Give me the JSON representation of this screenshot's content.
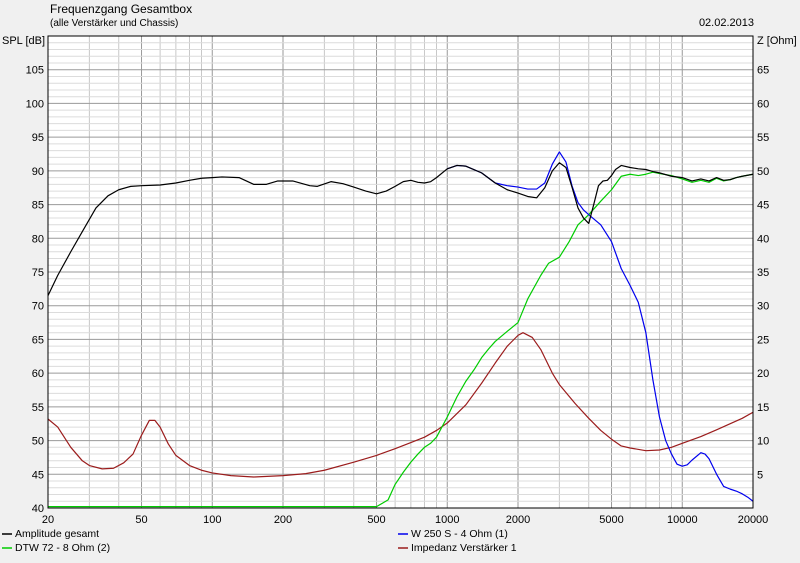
{
  "chart_data": {
    "type": "line",
    "title": "Frequenzgang Gesamtbox",
    "subtitle": "(alle Verstärker und Chassis)",
    "date": "02.02.2013",
    "ylabel_left": "SPL [dB]",
    "ylabel_right": "Z [Ohm]",
    "x_scale": "log",
    "xlim": [
      20,
      20000
    ],
    "ylim_left": [
      40,
      110
    ],
    "ylim_right": [
      0,
      70
    ],
    "x_ticks": [
      {
        "v": 20,
        "label": "20"
      },
      {
        "v": 50,
        "label": "50"
      },
      {
        "v": 100,
        "label": "100"
      },
      {
        "v": 200,
        "label": "200"
      },
      {
        "v": 500,
        "label": "500"
      },
      {
        "v": 1000,
        "label": "1000"
      },
      {
        "v": 2000,
        "label": "2000"
      },
      {
        "v": 5000,
        "label": "5000"
      },
      {
        "v": 10000,
        "label": "10000"
      },
      {
        "v": 20000,
        "label": "20000"
      }
    ],
    "y_ticks_left": [
      "40",
      "45",
      "50",
      "55",
      "60",
      "65",
      "70",
      "75",
      "80",
      "85",
      "90",
      "95",
      "100",
      "105"
    ],
    "y_ticks_right": [
      "5",
      "10",
      "15",
      "20",
      "25",
      "30",
      "35",
      "40",
      "45",
      "50",
      "55",
      "60",
      "65"
    ],
    "grid": true,
    "legend_position": "bottom",
    "series": [
      {
        "name": "Amplitude gesamt",
        "color": "#000000",
        "axis": "left",
        "points": [
          [
            20,
            71.5
          ],
          [
            22,
            74.5
          ],
          [
            25,
            78
          ],
          [
            28,
            81
          ],
          [
            32,
            84.5
          ],
          [
            36,
            86.3
          ],
          [
            40,
            87.2
          ],
          [
            45,
            87.7
          ],
          [
            50,
            87.8
          ],
          [
            60,
            87.9
          ],
          [
            70,
            88.2
          ],
          [
            80,
            88.6
          ],
          [
            90,
            88.9
          ],
          [
            100,
            89
          ],
          [
            110,
            89.1
          ],
          [
            130,
            89
          ],
          [
            150,
            88
          ],
          [
            170,
            88
          ],
          [
            190,
            88.5
          ],
          [
            220,
            88.5
          ],
          [
            260,
            87.8
          ],
          [
            280,
            87.7
          ],
          [
            320,
            88.4
          ],
          [
            360,
            88.1
          ],
          [
            400,
            87.6
          ],
          [
            450,
            87
          ],
          [
            500,
            86.6
          ],
          [
            550,
            87
          ],
          [
            600,
            87.7
          ],
          [
            650,
            88.4
          ],
          [
            700,
            88.6
          ],
          [
            750,
            88.3
          ],
          [
            800,
            88.2
          ],
          [
            850,
            88.4
          ],
          [
            900,
            89
          ],
          [
            1000,
            90.3
          ],
          [
            1100,
            90.8
          ],
          [
            1200,
            90.7
          ],
          [
            1400,
            89.7
          ],
          [
            1600,
            88.2
          ],
          [
            1800,
            87.2
          ],
          [
            2000,
            86.7
          ],
          [
            2200,
            86.2
          ],
          [
            2400,
            86
          ],
          [
            2600,
            87.5
          ],
          [
            2800,
            90
          ],
          [
            3000,
            91.2
          ],
          [
            3200,
            90.5
          ],
          [
            3400,
            87.5
          ],
          [
            3600,
            84.5
          ],
          [
            3800,
            83
          ],
          [
            4000,
            82.2
          ],
          [
            4200,
            85
          ],
          [
            4400,
            87.8
          ],
          [
            4600,
            88.5
          ],
          [
            4800,
            88.6
          ],
          [
            5000,
            89.3
          ],
          [
            5200,
            90.2
          ],
          [
            5500,
            90.8
          ],
          [
            6000,
            90.5
          ],
          [
            6500,
            90.3
          ],
          [
            7000,
            90.2
          ],
          [
            7500,
            89.9
          ],
          [
            8000,
            89.7
          ],
          [
            9000,
            89.2
          ],
          [
            10000,
            89
          ],
          [
            11000,
            88.5
          ],
          [
            12000,
            88.8
          ],
          [
            13000,
            88.5
          ],
          [
            14000,
            89
          ],
          [
            15000,
            88.6
          ],
          [
            16000,
            88.7
          ],
          [
            17000,
            89
          ],
          [
            18000,
            89.2
          ],
          [
            20000,
            89.5
          ]
        ]
      },
      {
        "name": "W 250 S - 4 Ohm (1)",
        "color": "#0000ee",
        "axis": "left",
        "points": [
          [
            1000,
            90.3
          ],
          [
            1100,
            90.8
          ],
          [
            1200,
            90.7
          ],
          [
            1400,
            89.7
          ],
          [
            1600,
            88.2
          ],
          [
            1800,
            87.8
          ],
          [
            2000,
            87.6
          ],
          [
            2200,
            87.3
          ],
          [
            2400,
            87.3
          ],
          [
            2600,
            88.2
          ],
          [
            2800,
            91
          ],
          [
            3000,
            92.8
          ],
          [
            3200,
            91.3
          ],
          [
            3400,
            87.7
          ],
          [
            3600,
            85.3
          ],
          [
            3800,
            84.2
          ],
          [
            4000,
            83.5
          ],
          [
            4500,
            82
          ],
          [
            5000,
            79.5
          ],
          [
            5500,
            75.5
          ],
          [
            6000,
            73
          ],
          [
            6500,
            70.5
          ],
          [
            7000,
            66
          ],
          [
            7500,
            59
          ],
          [
            8000,
            53.5
          ],
          [
            8500,
            50
          ],
          [
            9000,
            48
          ],
          [
            9500,
            46.5
          ],
          [
            10000,
            46.2
          ],
          [
            10500,
            46.4
          ],
          [
            11000,
            47.1
          ],
          [
            12000,
            48.2
          ],
          [
            12500,
            48
          ],
          [
            13000,
            47.3
          ],
          [
            14000,
            45
          ],
          [
            15000,
            43.2
          ],
          [
            16000,
            42.8
          ],
          [
            17000,
            42.5
          ],
          [
            18000,
            42.1
          ],
          [
            19000,
            41.6
          ],
          [
            20000,
            41
          ]
        ]
      },
      {
        "name": "DTW 72 - 8 Ohm (2)",
        "color": "#00cc00",
        "axis": "left",
        "points": [
          [
            20,
            40.2
          ],
          [
            100,
            40.2
          ],
          [
            300,
            40.2
          ],
          [
            500,
            40.2
          ],
          [
            560,
            41.2
          ],
          [
            600,
            43.5
          ],
          [
            650,
            45.3
          ],
          [
            700,
            46.8
          ],
          [
            750,
            48
          ],
          [
            800,
            49
          ],
          [
            850,
            49.6
          ],
          [
            900,
            50.5
          ],
          [
            1000,
            53.5
          ],
          [
            1100,
            56.5
          ],
          [
            1200,
            58.8
          ],
          [
            1300,
            60.5
          ],
          [
            1400,
            62.3
          ],
          [
            1500,
            63.6
          ],
          [
            1600,
            64.7
          ],
          [
            1800,
            66.2
          ],
          [
            2000,
            67.5
          ],
          [
            2200,
            71
          ],
          [
            2500,
            74.5
          ],
          [
            2700,
            76.3
          ],
          [
            3000,
            77.2
          ],
          [
            3300,
            79.5
          ],
          [
            3600,
            82
          ],
          [
            4000,
            83.5
          ],
          [
            4500,
            85.5
          ],
          [
            5000,
            87.2
          ],
          [
            5500,
            89.2
          ],
          [
            6000,
            89.5
          ],
          [
            6500,
            89.3
          ],
          [
            7000,
            89.5
          ],
          [
            7500,
            89.8
          ],
          [
            8000,
            89.6
          ],
          [
            9000,
            89.3
          ],
          [
            10000,
            88.8
          ],
          [
            11000,
            88.3
          ],
          [
            12000,
            88.6
          ],
          [
            13000,
            88.3
          ],
          [
            14000,
            88.9
          ],
          [
            15000,
            88.5
          ],
          [
            16000,
            88.7
          ],
          [
            17000,
            89
          ],
          [
            18000,
            89.2
          ],
          [
            20000,
            89.5
          ]
        ]
      },
      {
        "name": "Impedanz Verstärker 1",
        "color": "#9b1c1c",
        "axis": "right",
        "points": [
          [
            20,
            13.2
          ],
          [
            22,
            12
          ],
          [
            25,
            9
          ],
          [
            28,
            7
          ],
          [
            30,
            6.3
          ],
          [
            34,
            5.8
          ],
          [
            38,
            5.9
          ],
          [
            42,
            6.7
          ],
          [
            46,
            8
          ],
          [
            50,
            10.8
          ],
          [
            54,
            13
          ],
          [
            57,
            13
          ],
          [
            60,
            12
          ],
          [
            65,
            9.5
          ],
          [
            70,
            7.8
          ],
          [
            80,
            6.3
          ],
          [
            90,
            5.6
          ],
          [
            100,
            5.2
          ],
          [
            120,
            4.8
          ],
          [
            150,
            4.6
          ],
          [
            200,
            4.8
          ],
          [
            250,
            5.1
          ],
          [
            300,
            5.6
          ],
          [
            400,
            6.8
          ],
          [
            500,
            7.8
          ],
          [
            600,
            8.8
          ],
          [
            700,
            9.7
          ],
          [
            800,
            10.5
          ],
          [
            900,
            11.5
          ],
          [
            1000,
            12.6
          ],
          [
            1200,
            15.3
          ],
          [
            1400,
            18.5
          ],
          [
            1600,
            21.5
          ],
          [
            1800,
            24
          ],
          [
            2000,
            25.6
          ],
          [
            2100,
            26
          ],
          [
            2300,
            25.3
          ],
          [
            2500,
            23.5
          ],
          [
            2800,
            20
          ],
          [
            3000,
            18.3
          ],
          [
            3500,
            15.5
          ],
          [
            4000,
            13.3
          ],
          [
            4500,
            11.5
          ],
          [
            5000,
            10.2
          ],
          [
            5500,
            9.2
          ],
          [
            6000,
            8.9
          ],
          [
            7000,
            8.5
          ],
          [
            8000,
            8.6
          ],
          [
            9000,
            9
          ],
          [
            10000,
            9.6
          ],
          [
            12000,
            10.6
          ],
          [
            14000,
            11.6
          ],
          [
            16000,
            12.5
          ],
          [
            18000,
            13.3
          ],
          [
            20000,
            14.2
          ]
        ]
      }
    ]
  }
}
